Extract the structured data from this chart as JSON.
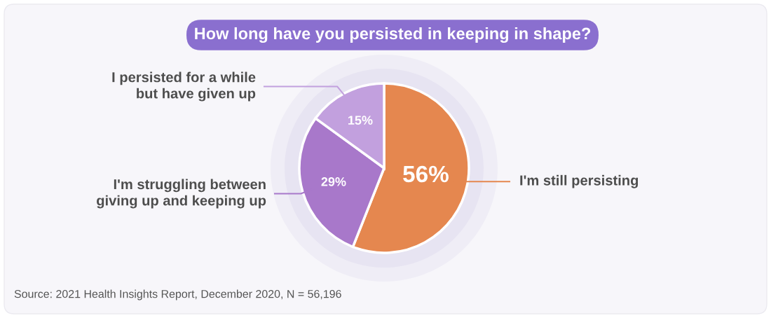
{
  "chart_data": {
    "type": "pie",
    "title": "How long have you persisted in keeping in shape?",
    "categories": [
      "I'm still persisting",
      "I'm struggling between giving up and keeping up",
      "I persisted for a while but have given up"
    ],
    "values": [
      56,
      29,
      15
    ],
    "colors": [
      "#e5874f",
      "#a878ca",
      "#c2a0de"
    ],
    "value_labels": [
      "56%",
      "29%",
      "15%"
    ],
    "annotations": [
      "Source: 2021 Health Insights Report, December 2020, N = 56,196"
    ]
  }
}
